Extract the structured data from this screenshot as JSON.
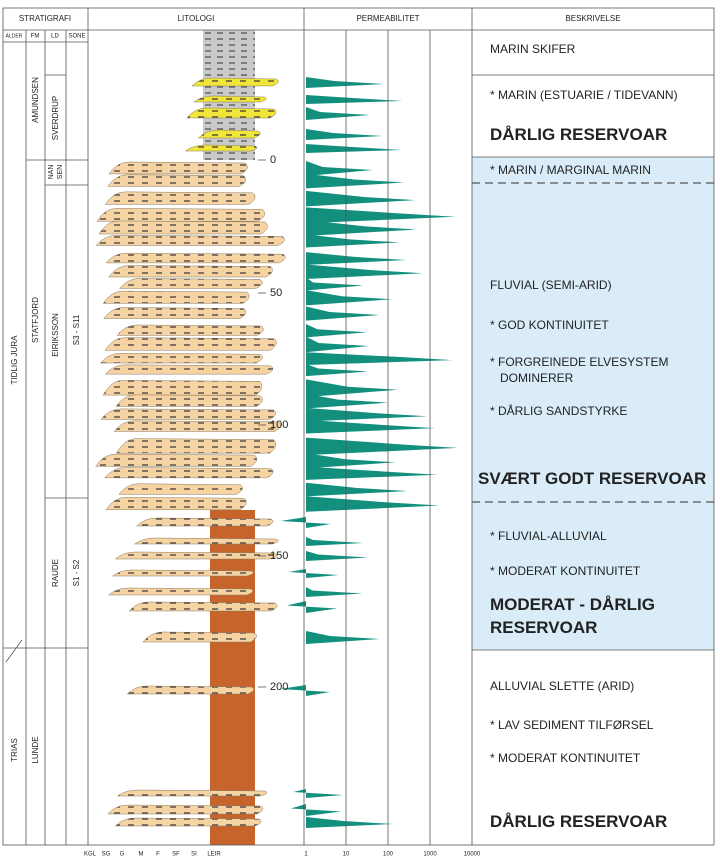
{
  "headers": {
    "stratigraphy": "STRATIGRAFI",
    "lithology": "LITOLOGI",
    "permeability": "PERMEABILITET",
    "description": "BESKRIVELSE"
  },
  "subheaders": [
    "ALDER",
    "FM",
    "LD",
    "SONE"
  ],
  "age": [
    "TIDLIG JURA",
    "TRIAS"
  ],
  "formations": [
    "AMUNDSEN",
    "STATFJORD",
    "LUNDE"
  ],
  "members": [
    "SVERDRUP",
    "NAN",
    "SEN",
    "EIRIKSSON",
    "RAUDE"
  ],
  "zones": [
    "S3 - S11",
    "S1 - S2"
  ],
  "depth_ticks": [
    "0",
    "50",
    "100",
    "150",
    "200"
  ],
  "grain_size_scale": [
    "KGL",
    "SG",
    "G",
    "M",
    "F",
    "SF",
    "SI",
    "LEIR"
  ],
  "permeability_scale": [
    "1",
    "10",
    "100",
    "1000",
    "10000"
  ],
  "descriptions": [
    {
      "lines": [
        "MARIN SKIFER"
      ]
    },
    {
      "lines": [
        "* MARIN (ESTUARIE / TIDEVANN)"
      ],
      "summary": "DÅRLIG RESERVOAR"
    },
    {
      "lines": [
        "* MARIN / MARGINAL MARIN"
      ]
    },
    {
      "lines": [
        "FLUVIAL (SEMI-ARID)",
        "* GOD KONTINUITET",
        "* FORGREINEDE ELVESYSTEM DOMINERER",
        "* DÅRLIG SANDSTYRKE"
      ],
      "summary": "SVÆRT GODT RESERVOAR"
    },
    {
      "lines": [
        "* FLUVIAL-ALLUVIAL",
        "* MODERAT KONTINUITET"
      ],
      "summary": "MODERAT - DÅRLIG RESERVOAR"
    },
    {
      "lines": [
        "ALLUVIAL SLETTE (ARID)",
        "* LAV SEDIMENT TILFØRSEL",
        "* MODERAT KONTINUITET"
      ],
      "summary": "DÅRLIG RESERVOAR"
    }
  ]
}
